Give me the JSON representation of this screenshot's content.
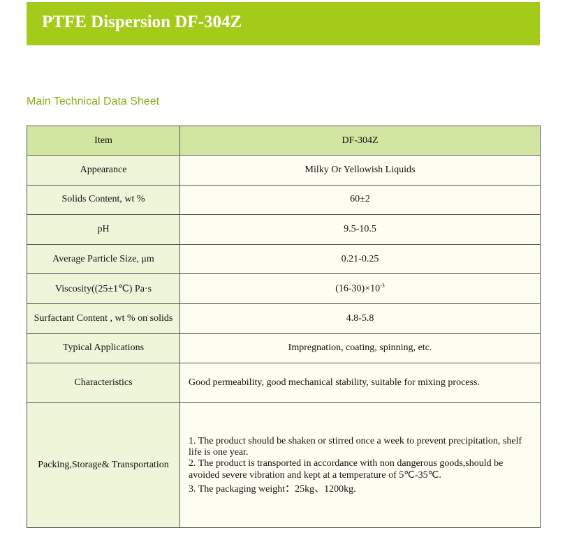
{
  "header": {
    "title": "PTFE Dispersion DF-304Z"
  },
  "section_title": "Main Technical Data Sheet",
  "table": {
    "header": [
      "Item",
      "DF-304Z"
    ],
    "rows": [
      [
        "Appearance",
        "Milky Or Yellowish Liquids"
      ],
      [
        "Solids Content, wt %",
        "60±2"
      ],
      [
        "pH",
        "9.5-10.5"
      ],
      [
        "Average Particle Size, μm",
        "0.21-0.25"
      ],
      [
        "Viscosity((25±1℃) Pa·s",
        {
          "base": "(16-30)×10",
          "exponent": "-3"
        }
      ],
      [
        "Surfactant Content , wt % on solids",
        "4.8-5.8"
      ],
      [
        "Typical Applications",
        "Impregnation, coating, spinning, etc."
      ],
      [
        "Characteristics",
        "Good permeability, good mechanical stability, suitable for mixing process."
      ],
      [
        "Packing,Storage& Transportation",
        [
          "1. The product should be shaken or stirred once a week to prevent precipitation, shelf life is one year.",
          "2. The product is transported in accordance with non dangerous goods,should be avoided severe vibration and kept at a temperature of 5℃-35℃.",
          "3. The packaging weight：25kg、1200kg."
        ]
      ]
    ]
  }
}
